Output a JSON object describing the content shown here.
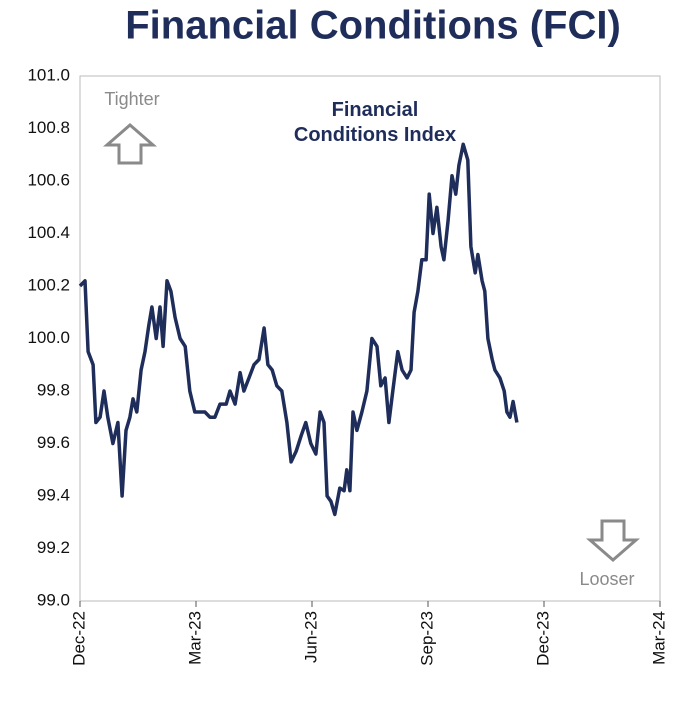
{
  "chart_data": {
    "type": "line",
    "title": "Financial Conditions (FCI)",
    "annotations": [
      "Tighter",
      "Looser"
    ],
    "xlim": [
      0,
      15
    ],
    "xticks": [
      {
        "value": 0,
        "label": "Dec-22"
      },
      {
        "value": 3,
        "label": "Mar-23"
      },
      {
        "value": 6,
        "label": "Jun-23"
      },
      {
        "value": 9,
        "label": "Sep-23"
      },
      {
        "value": 12,
        "label": "Dec-23"
      },
      {
        "value": 15,
        "label": "Mar-24"
      }
    ],
    "ylim": [
      99.0,
      101.0
    ],
    "yticks": [
      {
        "value": 99.0,
        "label": "99.0"
      },
      {
        "value": 99.2,
        "label": "99.2"
      },
      {
        "value": 99.4,
        "label": "99.4"
      },
      {
        "value": 99.6,
        "label": "99.6"
      },
      {
        "value": 99.8,
        "label": "99.8"
      },
      {
        "value": 100.0,
        "label": "100.0"
      },
      {
        "value": 100.2,
        "label": "100.2"
      },
      {
        "value": 100.4,
        "label": "100.4"
      },
      {
        "value": 100.6,
        "label": "100.6"
      },
      {
        "value": 100.8,
        "label": "100.8"
      },
      {
        "value": 101.0,
        "label": "101.0"
      }
    ],
    "grid": false,
    "x": [
      0,
      0.13,
      0.21,
      0.34,
      0.41,
      0.52,
      0.62,
      0.72,
      0.85,
      0.98,
      1.09,
      1.19,
      1.29,
      1.37,
      1.47,
      1.58,
      1.68,
      1.78,
      1.86,
      1.97,
      2.07,
      2.15,
      2.25,
      2.35,
      2.46,
      2.59,
      2.72,
      2.84,
      2.97,
      3.1,
      3.23,
      3.36,
      3.49,
      3.62,
      3.78,
      3.88,
      4.01,
      4.14,
      4.24,
      4.37,
      4.5,
      4.63,
      4.76,
      4.86,
      4.97,
      5.09,
      5.22,
      5.35,
      5.46,
      5.59,
      5.72,
      5.84,
      5.97,
      6.1,
      6.21,
      6.31,
      6.39,
      6.49,
      6.59,
      6.72,
      6.83,
      6.9,
      6.98,
      7.06,
      7.16,
      7.29,
      7.42,
      7.55,
      7.68,
      7.78,
      7.89,
      7.99,
      8.09,
      8.22,
      8.33,
      8.46,
      8.56,
      8.64,
      8.74,
      8.84,
      8.95,
      9.03,
      9.13,
      9.23,
      9.34,
      9.41,
      9.52,
      9.62,
      9.72,
      9.8,
      9.91,
      10.03,
      10.11,
      10.22,
      10.29,
      10.4,
      10.47,
      10.55,
      10.66,
      10.73,
      10.86,
      10.97,
      11.04,
      11.12,
      11.2,
      11.3
    ],
    "series": [
      {
        "name": "Financial Conditions Index",
        "color": "#1f2d5a",
        "values": [
          100.2,
          100.22,
          99.95,
          99.9,
          99.68,
          99.7,
          99.8,
          99.7,
          99.6,
          99.68,
          99.4,
          99.65,
          99.7,
          99.77,
          99.72,
          99.88,
          99.95,
          100.05,
          100.12,
          100.0,
          100.12,
          99.97,
          100.22,
          100.18,
          100.08,
          100.0,
          99.97,
          99.8,
          99.72,
          99.72,
          99.72,
          99.7,
          99.7,
          99.75,
          99.75,
          99.8,
          99.75,
          99.87,
          99.8,
          99.85,
          99.9,
          99.92,
          100.04,
          99.9,
          99.88,
          99.82,
          99.8,
          99.68,
          99.53,
          99.57,
          99.63,
          99.68,
          99.6,
          99.56,
          99.72,
          99.68,
          99.4,
          99.38,
          99.33,
          99.43,
          99.42,
          99.5,
          99.42,
          99.72,
          99.65,
          99.72,
          99.8,
          100.0,
          99.97,
          99.82,
          99.85,
          99.68,
          99.8,
          99.95,
          99.88,
          99.85,
          99.88,
          100.1,
          100.18,
          100.3,
          100.3,
          100.55,
          100.4,
          100.5,
          100.35,
          100.3,
          100.45,
          100.62,
          100.55,
          100.66,
          100.74,
          100.68,
          100.35,
          100.25,
          100.32,
          100.22,
          100.18,
          100.0,
          99.92,
          99.88,
          99.85,
          99.8,
          99.72,
          99.7,
          99.76,
          99.68
        ]
      }
    ]
  }
}
